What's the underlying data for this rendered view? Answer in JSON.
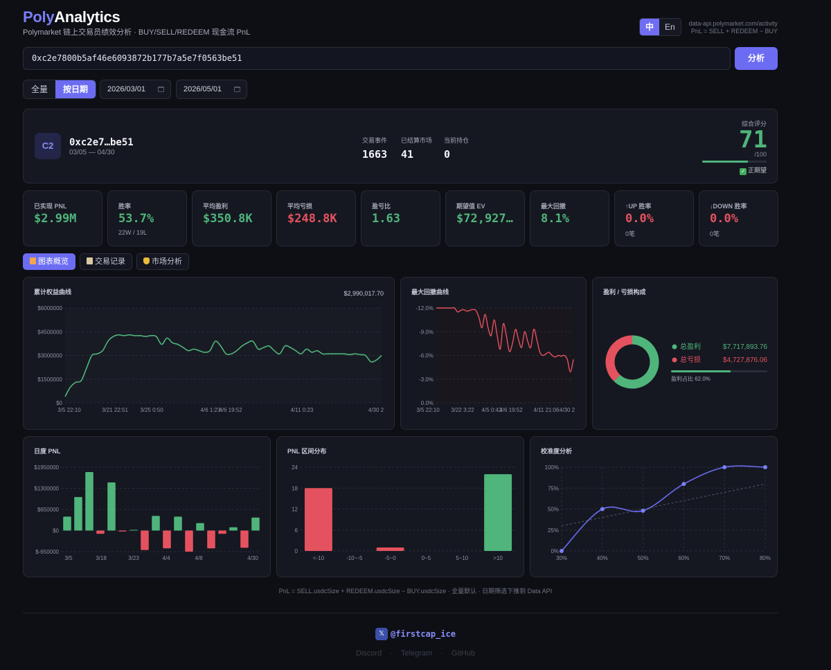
{
  "header": {
    "logo_a": "Poly",
    "logo_b": "Analytics",
    "subtitle": "Polymarket 链上交易员绩效分析 · BUY/SELL/REDEEM 现金流 PnL",
    "lang_zh": "中",
    "lang_en": "En",
    "api_line1": "data-api.polymarket.com/activity",
    "api_line2": "PnL = SELL + REDEEM − BUY"
  },
  "search": {
    "address": "0xc2e7800b5af46e6093872b177b7a5e7f0563be51",
    "button": "分析"
  },
  "filters": {
    "all": "全量",
    "by_date": "按日期",
    "start_date": "2026/03/01",
    "end_date": "2026/05/01"
  },
  "profile": {
    "avatar": "C2",
    "name": "0xc2e7…be51",
    "range": "03/05 — 04/30",
    "stats": [
      {
        "label": "交易事件",
        "value": "1663"
      },
      {
        "label": "已结算市场",
        "value": "41"
      },
      {
        "label": "当前持仓",
        "value": "0"
      }
    ],
    "score_label": "综合评分",
    "score": "71",
    "score_max": "/100",
    "score_fraction": 0.71,
    "score_tag": "正期望"
  },
  "metrics": [
    {
      "label": "已实现 PNL",
      "value": "$2.99M",
      "tone": "pos",
      "sub": ""
    },
    {
      "label": "胜率",
      "value": "53.7%",
      "tone": "pos",
      "sub": "22W / 19L"
    },
    {
      "label": "平均盈利",
      "value": "$350.8K",
      "tone": "pos",
      "sub": ""
    },
    {
      "label": "平均亏损",
      "value": "$248.8K",
      "tone": "neg",
      "sub": ""
    },
    {
      "label": "盈亏比",
      "value": "1.63",
      "tone": "pos",
      "sub": ""
    },
    {
      "label": "期望值 EV",
      "value": "$72,927…",
      "tone": "pos",
      "sub": ""
    },
    {
      "label": "最大回撤",
      "value": "8.1%",
      "tone": "pos",
      "sub": ""
    },
    {
      "label": "↑UP 胜率",
      "value": "0.0%",
      "tone": "neg",
      "sub": "0笔"
    },
    {
      "label": "↓DOWN 胜率",
      "value": "0.0%",
      "tone": "neg",
      "sub": "0笔"
    }
  ],
  "tabs": [
    {
      "label": "图表概览",
      "icon": "chart-icon"
    },
    {
      "label": "交易记录",
      "icon": "clipboard-icon"
    },
    {
      "label": "市场分析",
      "icon": "trophy-icon"
    }
  ],
  "colors": {
    "accent": "#6c6cf3",
    "positive": "#4fb57b",
    "negative": "#e5525f",
    "background": "#0d0f15"
  },
  "chart_data": [
    {
      "id": "equity",
      "type": "line",
      "title": "累计权益曲线",
      "value_label": "$2,990,017.70",
      "x_ticks": [
        "3/5 22:10",
        "3/21 22:51",
        "3/25 0:50",
        "4/6 1:23",
        "4/6 19:52",
        "4/11 0:23",
        "4/30 2"
      ],
      "y_ticks": [
        "$0",
        "$1500000",
        "$3000000",
        "$4500000",
        "$6000000"
      ],
      "ylim": [
        0,
        6000000
      ],
      "y": [
        400000,
        1000000,
        1300000,
        1400000,
        2200000,
        3000000,
        3100000,
        3300000,
        3900000,
        4200000,
        4300000,
        4250000,
        4300000,
        4250000,
        4250000,
        4200000,
        4250000,
        4200000,
        3700000,
        4100000,
        3800000,
        3700000,
        3500000,
        3300000,
        3400000,
        3300000,
        3200000,
        3300000,
        3900000,
        3600000,
        3100000,
        3100000,
        3300000,
        3600000,
        3800000,
        3900000,
        3400000,
        3500000,
        3600000,
        3300000,
        3100000,
        3600000,
        3500000,
        3300000,
        3100000,
        3400000,
        3200000,
        3300000,
        3100000,
        3100000,
        3100000,
        3100000,
        3100000,
        3050000,
        3100000,
        3050000,
        3000000,
        2600000,
        2700000,
        3000000
      ]
    },
    {
      "id": "drawdown",
      "type": "line",
      "title": "最大回撤曲线",
      "x_ticks": [
        "3/5 22:10",
        "3/22 3:22",
        "4/5 0:42",
        "4/6 19:52",
        "4/11 21:06",
        "4/30 2"
      ],
      "y_ticks": [
        "0.0%",
        "-3.0%",
        "-6.0%",
        "-9.0%",
        "-12.0%"
      ],
      "ylim": [
        -12,
        0
      ],
      "y": [
        0,
        0,
        0,
        0,
        0,
        0,
        0,
        -0.5,
        -0.3,
        -0.2,
        -0.4,
        -0.3,
        -0.2,
        -0.3,
        -1.2,
        -2.5,
        -0.8,
        -2.5,
        -3.5,
        -1.5,
        -3.5,
        -5.2,
        -2.0,
        -3.5,
        -5.5,
        -4.5,
        -2.7,
        -4.0,
        -5.0,
        -3.0,
        -4.2,
        -5.0,
        -2.7,
        -4.0,
        -5.6,
        -6.0,
        -5.8,
        -5.6,
        -6.0,
        -6.2,
        -6.0,
        -6.1,
        -6.0,
        -6.5,
        -8.1,
        -6.5
      ]
    },
    {
      "id": "composition",
      "type": "pie",
      "title": "盈利 / 亏损构成",
      "labels": [
        "总盈利",
        "总亏损"
      ],
      "values": [
        7717893.76,
        4727876.06
      ],
      "value_labels": [
        "$7,717,893.76",
        "$4,727,876.06"
      ],
      "ratio_label": "盈利占比 62.0%",
      "ratio": 0.62
    },
    {
      "id": "daily",
      "type": "bar",
      "title": "日度 PNL",
      "x_ticks": [
        "3/5",
        "3/18",
        "3/23",
        "4/4",
        "4/8",
        "4/30"
      ],
      "y_ticks": [
        "$-650000",
        "$0",
        "$650000",
        "$1300000",
        "$1950000"
      ],
      "ylim": [
        -650000,
        1950000
      ],
      "values": [
        430000,
        1030000,
        1800000,
        -100000,
        1480000,
        -30000,
        20000,
        -600000,
        450000,
        -550000,
        430000,
        -650000,
        230000,
        -550000,
        -100000,
        100000,
        -530000,
        400000
      ]
    },
    {
      "id": "distribution",
      "type": "bar",
      "title": "PNL 区间分布",
      "categories": [
        "<-10",
        "-10~-5",
        "-5~0",
        "0~5",
        "5~10",
        ">10"
      ],
      "values": [
        18,
        0,
        1,
        0,
        0,
        22
      ],
      "tones": [
        "neg",
        "neg",
        "neg",
        "pos",
        "pos",
        "pos"
      ],
      "y_ticks": [
        "0",
        "6",
        "12",
        "18",
        "24"
      ],
      "ylim": [
        0,
        24
      ]
    },
    {
      "id": "calibration",
      "type": "line",
      "title": "校准度分析",
      "x": [
        "30%",
        "40%",
        "50%",
        "60%",
        "70%",
        "80%"
      ],
      "y": [
        0,
        50,
        48,
        80,
        100,
        100
      ],
      "x_ticks": [
        "30%",
        "40%",
        "50%",
        "60%",
        "70%",
        "80%"
      ],
      "y_ticks": [
        "0%",
        "25%",
        "50%",
        "75%",
        "100%"
      ],
      "ylim": [
        0,
        100
      ]
    }
  ],
  "footer": {
    "formula": "PnL = SELL.usdcSize + REDEEM.usdcSize − BUY.usdcSize · 全量默认 · 日期筛选下推到 Data API",
    "x_icon": "𝕏",
    "handle": "@firstcap_ice",
    "links": [
      "Discord",
      "Telegram",
      "GitHub"
    ]
  }
}
